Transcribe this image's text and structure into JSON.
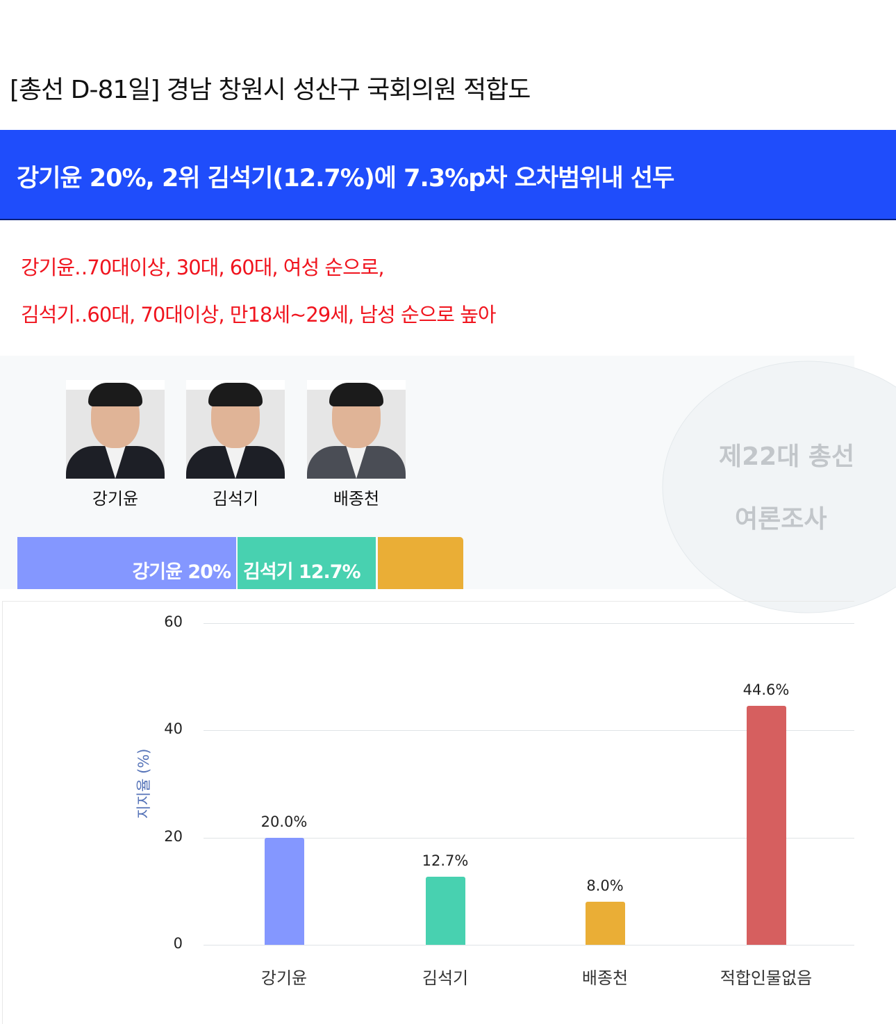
{
  "title": "[총선 D-81일] 경남 창원시 성산구 국회의원 적합도",
  "headline": "강기윤 20%, 2위 김석기(12.7%)에 7.3%p차 오차범위내 선두",
  "subtitle_lines": [
    "강기윤‥70대이상, 30대, 60대, 여성 순으로,",
    "김석기‥60대, 70대이상, 만18세~29세, 남성 순으로 높아"
  ],
  "watermark": [
    "제22대 총선",
    "여론조사"
  ],
  "candidates": [
    {
      "name": "강기윤"
    },
    {
      "name": "김석기"
    },
    {
      "name": "배종천"
    }
  ],
  "stacked_bar": [
    {
      "label": "강기윤 20%",
      "color": "#8497ff"
    },
    {
      "label": "김석기 12.7%",
      "color": "#48d1b0"
    },
    {
      "label": "",
      "color": "#eaae36"
    }
  ],
  "chart_data": {
    "type": "bar",
    "categories": [
      "강기윤",
      "김석기",
      "배종천",
      "적합인물없음"
    ],
    "values": [
      20.0,
      12.7,
      8.0,
      44.6
    ],
    "value_labels": [
      "20.0%",
      "12.7%",
      "8.0%",
      "44.6%"
    ],
    "colors": [
      "#8497ff",
      "#48d1b0",
      "#eaae36",
      "#d65f5f"
    ],
    "ylabel": "지지율 (%)",
    "ylim": [
      0,
      60
    ],
    "yticks": [
      "0",
      "20",
      "40",
      "60"
    ],
    "grid": true
  }
}
